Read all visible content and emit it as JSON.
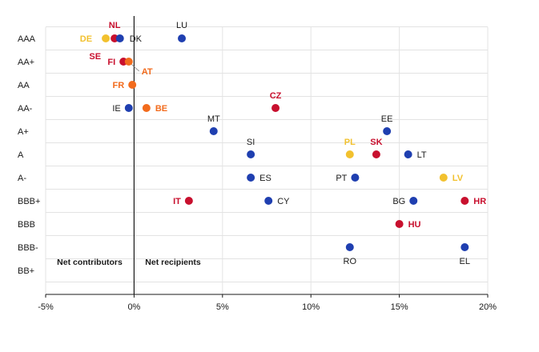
{
  "chart_data": {
    "type": "scatter",
    "title": "",
    "xlabel": "",
    "ylabel": "",
    "xlim": [
      -5,
      20
    ],
    "x_ticks": [
      -5,
      0,
      5,
      10,
      15,
      20
    ],
    "x_tick_labels": [
      "-5%",
      "0%",
      "5%",
      "10%",
      "15%",
      "20%"
    ],
    "categories": [
      "AAA",
      "AA+",
      "AA",
      "AA-",
      "A+",
      "A",
      "A-",
      "BBB+",
      "BBB",
      "BBB-",
      "BB+"
    ],
    "grid": true,
    "zone_labels": {
      "left": "Net contributors",
      "right": "Net recipients"
    },
    "colors": {
      "blue": "#1f3fb0",
      "red": "#c8102e",
      "orange": "#f26b1d",
      "yellow": "#f2c12e"
    },
    "points": [
      {
        "label": "NL",
        "x": -1.1,
        "rating": "AAA",
        "color": "red"
      },
      {
        "label": "DE",
        "x": -1.6,
        "rating": "AAA",
        "color": "yellow"
      },
      {
        "label": "DK",
        "x": -0.8,
        "rating": "AAA",
        "color": "blue"
      },
      {
        "label": "LU",
        "x": 2.7,
        "rating": "AAA",
        "color": "blue"
      },
      {
        "label": "SE",
        "x": -1.1,
        "rating": "AAA",
        "color": "red"
      },
      {
        "label": "FI",
        "x": -0.6,
        "rating": "AA+",
        "color": "red"
      },
      {
        "label": "AT",
        "x": -0.3,
        "rating": "AA+",
        "color": "orange"
      },
      {
        "label": "FR",
        "x": -0.1,
        "rating": "AA",
        "color": "orange"
      },
      {
        "label": "IE",
        "x": -0.3,
        "rating": "AA-",
        "color": "blue"
      },
      {
        "label": "BE",
        "x": 0.7,
        "rating": "AA-",
        "color": "orange"
      },
      {
        "label": "CZ",
        "x": 8.0,
        "rating": "AA-",
        "color": "red"
      },
      {
        "label": "MT",
        "x": 4.5,
        "rating": "A+",
        "color": "blue"
      },
      {
        "label": "EE",
        "x": 14.3,
        "rating": "A+",
        "color": "blue"
      },
      {
        "label": "SI",
        "x": 6.6,
        "rating": "A",
        "color": "blue"
      },
      {
        "label": "PL",
        "x": 12.2,
        "rating": "A",
        "color": "yellow"
      },
      {
        "label": "SK",
        "x": 13.7,
        "rating": "A",
        "color": "red"
      },
      {
        "label": "LT",
        "x": 15.5,
        "rating": "A",
        "color": "blue"
      },
      {
        "label": "ES",
        "x": 6.6,
        "rating": "A-",
        "color": "blue"
      },
      {
        "label": "PT",
        "x": 12.5,
        "rating": "A-",
        "color": "blue"
      },
      {
        "label": "LV",
        "x": 17.5,
        "rating": "A-",
        "color": "yellow"
      },
      {
        "label": "IT",
        "x": 3.1,
        "rating": "BBB+",
        "color": "red"
      },
      {
        "label": "CY",
        "x": 7.6,
        "rating": "BBB+",
        "color": "blue"
      },
      {
        "label": "BG",
        "x": 15.8,
        "rating": "BBB+",
        "color": "blue"
      },
      {
        "label": "HR",
        "x": 18.7,
        "rating": "BBB+",
        "color": "red"
      },
      {
        "label": "HU",
        "x": 15.0,
        "rating": "BBB",
        "color": "red"
      },
      {
        "label": "RO",
        "x": 12.2,
        "rating": "BBB-",
        "color": "blue"
      },
      {
        "label": "EL",
        "x": 18.7,
        "rating": "BBB-",
        "color": "blue"
      }
    ]
  }
}
